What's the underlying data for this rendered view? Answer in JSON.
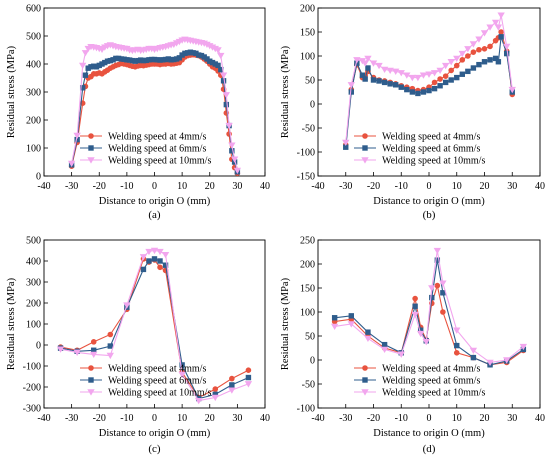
{
  "colors": {
    "s4": "#e8533f",
    "s6": "#2f5d8c",
    "s10": "#f2a6ee"
  },
  "chart_data": [
    {
      "type": "line",
      "panel_label": "(a)",
      "xlabel": "Distance to origin O (mm)",
      "ylabel": "Residual stress (MPa)",
      "xlim": [
        -40,
        40
      ],
      "ylim": [
        0,
        600
      ],
      "xticks": [
        -40,
        -30,
        -20,
        -10,
        0,
        10,
        20,
        30,
        40
      ],
      "yticks": [
        0,
        100,
        200,
        300,
        400,
        500,
        600
      ],
      "legend_position": "bottom-center",
      "series": [
        {
          "name": "Welding speed at 4mm/s",
          "marker": "circle",
          "color": "#e8533f",
          "x": [
            -30,
            -28,
            -26,
            -25,
            -24,
            -23,
            -22,
            -21,
            -20,
            -19,
            -18,
            -17,
            -16,
            -15,
            -14,
            -13,
            -12,
            -11,
            -10,
            -9,
            -8,
            -7,
            -6,
            -5,
            -4,
            -3,
            -2,
            -1,
            0,
            1,
            2,
            3,
            4,
            5,
            6,
            7,
            8,
            9,
            10,
            11,
            12,
            13,
            14,
            15,
            16,
            17,
            18,
            19,
            20,
            21,
            22,
            23,
            24,
            25,
            26,
            27,
            28,
            29,
            30
          ],
          "y": [
            35,
            120,
            260,
            320,
            350,
            355,
            365,
            365,
            368,
            365,
            372,
            378,
            385,
            390,
            395,
            398,
            402,
            400,
            398,
            395,
            392,
            390,
            393,
            395,
            394,
            396,
            398,
            400,
            400,
            400,
            398,
            400,
            400,
            402,
            400,
            401,
            403,
            405,
            415,
            425,
            430,
            432,
            433,
            432,
            430,
            425,
            418,
            410,
            400,
            390,
            385,
            375,
            360,
            310,
            225,
            150,
            60,
            30,
            10
          ]
        },
        {
          "name": "Welding speed at 6mm/s",
          "marker": "square",
          "color": "#2f5d8c",
          "x": [
            -30,
            -28,
            -26,
            -25,
            -24,
            -23,
            -22,
            -21,
            -20,
            -19,
            -18,
            -17,
            -16,
            -15,
            -14,
            -13,
            -12,
            -11,
            -10,
            -9,
            -8,
            -7,
            -6,
            -5,
            -4,
            -3,
            -2,
            -1,
            0,
            1,
            2,
            3,
            4,
            5,
            6,
            7,
            8,
            9,
            10,
            11,
            12,
            13,
            14,
            15,
            16,
            17,
            18,
            19,
            20,
            21,
            22,
            23,
            24,
            25,
            26,
            27,
            28,
            29,
            30
          ],
          "y": [
            40,
            130,
            315,
            360,
            385,
            390,
            392,
            390,
            395,
            400,
            405,
            410,
            412,
            415,
            420,
            420,
            418,
            417,
            415,
            414,
            412,
            410,
            412,
            414,
            412,
            413,
            415,
            416,
            416,
            415,
            414,
            415,
            416,
            418,
            415,
            416,
            418,
            422,
            432,
            438,
            440,
            442,
            440,
            438,
            432,
            430,
            425,
            418,
            410,
            405,
            400,
            395,
            380,
            340,
            255,
            180,
            90,
            50,
            15
          ]
        },
        {
          "name": "Welding speed at 10mm/s",
          "marker": "triangle-down",
          "color": "#f2a6ee",
          "x": [
            -30,
            -28,
            -26,
            -25,
            -24,
            -23,
            -22,
            -21,
            -20,
            -19,
            -18,
            -17,
            -16,
            -15,
            -14,
            -13,
            -12,
            -11,
            -10,
            -9,
            -8,
            -7,
            -6,
            -5,
            -4,
            -3,
            -2,
            -1,
            0,
            1,
            2,
            3,
            4,
            5,
            6,
            7,
            8,
            9,
            10,
            11,
            12,
            13,
            14,
            15,
            16,
            17,
            18,
            19,
            20,
            21,
            22,
            23,
            24,
            25,
            26,
            27,
            28,
            29,
            30
          ],
          "y": [
            45,
            145,
            395,
            440,
            455,
            462,
            460,
            458,
            455,
            452,
            460,
            465,
            468,
            465,
            462,
            460,
            458,
            456,
            455,
            450,
            448,
            450,
            452,
            448,
            450,
            452,
            455,
            455,
            452,
            455,
            458,
            460,
            462,
            465,
            468,
            470,
            475,
            480,
            485,
            488,
            486,
            484,
            482,
            480,
            478,
            476,
            474,
            470,
            465,
            460,
            455,
            450,
            430,
            360,
            290,
            180,
            110,
            60,
            20
          ]
        }
      ]
    },
    {
      "type": "line",
      "panel_label": "(b)",
      "xlabel": "Distance to origin O (mm)",
      "ylabel": "Residual stress (MPa)",
      "xlim": [
        -40,
        40
      ],
      "ylim": [
        -150,
        200
      ],
      "xticks": [
        -40,
        -30,
        -20,
        -10,
        0,
        10,
        20,
        30,
        40
      ],
      "yticks": [
        -150,
        -100,
        -50,
        0,
        50,
        100,
        150,
        200
      ],
      "legend_position": "bottom-center",
      "series": [
        {
          "name": "Welding speed at 4mm/s",
          "marker": "circle",
          "color": "#e8533f",
          "x": [
            -30,
            -28,
            -26,
            -24,
            -23,
            -22,
            -20,
            -18,
            -16,
            -14,
            -12,
            -10,
            -8,
            -6,
            -4,
            -2,
            0,
            2,
            4,
            6,
            8,
            10,
            12,
            14,
            16,
            18,
            20,
            22,
            24,
            25,
            26,
            28,
            30
          ],
          "y": [
            -85,
            30,
            82,
            55,
            60,
            68,
            55,
            50,
            48,
            45,
            42,
            38,
            35,
            32,
            28,
            30,
            35,
            45,
            52,
            58,
            70,
            80,
            92,
            100,
            108,
            113,
            115,
            120,
            132,
            138,
            150,
            110,
            20
          ]
        },
        {
          "name": "Welding speed at 6mm/s",
          "marker": "square",
          "color": "#2f5d8c",
          "x": [
            -30,
            -28,
            -26,
            -24,
            -23,
            -22,
            -20,
            -18,
            -16,
            -14,
            -12,
            -10,
            -8,
            -6,
            -4,
            -2,
            0,
            2,
            4,
            6,
            8,
            10,
            12,
            14,
            16,
            18,
            20,
            22,
            24,
            25,
            26,
            28,
            30
          ],
          "y": [
            -90,
            25,
            85,
            60,
            52,
            75,
            50,
            48,
            45,
            42,
            40,
            35,
            30,
            25,
            22,
            25,
            28,
            32,
            38,
            45,
            50,
            55,
            62,
            68,
            75,
            82,
            88,
            92,
            95,
            88,
            140,
            105,
            25
          ]
        },
        {
          "name": "Welding speed at 10mm/s",
          "marker": "triangle-down",
          "color": "#f2a6ee",
          "x": [
            -30,
            -28,
            -26,
            -24,
            -23,
            -22,
            -20,
            -18,
            -16,
            -14,
            -12,
            -10,
            -8,
            -6,
            -4,
            -2,
            0,
            2,
            4,
            6,
            8,
            10,
            12,
            14,
            16,
            18,
            20,
            22,
            24,
            25,
            26,
            28,
            30
          ],
          "y": [
            -80,
            40,
            92,
            90,
            85,
            95,
            85,
            80,
            72,
            70,
            68,
            65,
            60,
            55,
            55,
            60,
            62,
            65,
            70,
            80,
            88,
            95,
            105,
            115,
            125,
            135,
            148,
            160,
            170,
            160,
            185,
            120,
            30
          ]
        }
      ]
    },
    {
      "type": "line",
      "panel_label": "(c)",
      "xlabel": "Distance to origin O (mm)",
      "ylabel": "Residual stress (MPa)",
      "xlim": [
        -40,
        40
      ],
      "ylim": [
        -300,
        500
      ],
      "xticks": [
        -40,
        -30,
        -20,
        -10,
        0,
        10,
        20,
        30,
        40
      ],
      "yticks": [
        -300,
        -200,
        -100,
        0,
        100,
        200,
        300,
        400,
        500
      ],
      "legend_position": "bottom-center",
      "series": [
        {
          "name": "Welding speed at 4mm/s",
          "marker": "circle",
          "color": "#e8533f",
          "x": [
            -34,
            -28,
            -22,
            -16,
            -10,
            -4,
            -2,
            0,
            2,
            4,
            10,
            16,
            22,
            28,
            34
          ],
          "y": [
            -10,
            -25,
            15,
            50,
            170,
            410,
            395,
            405,
            370,
            355,
            -130,
            -250,
            -210,
            -160,
            -120
          ]
        },
        {
          "name": "Welding speed at 6mm/s",
          "marker": "square",
          "color": "#2f5d8c",
          "x": [
            -34,
            -28,
            -22,
            -16,
            -10,
            -4,
            -2,
            0,
            2,
            4,
            10,
            16,
            22,
            28,
            34
          ],
          "y": [
            -15,
            -30,
            -25,
            -5,
            180,
            360,
            400,
            410,
            400,
            380,
            -95,
            -255,
            -235,
            -190,
            -155
          ]
        },
        {
          "name": "Welding speed at 10mm/s",
          "marker": "triangle-down",
          "color": "#f2a6ee",
          "x": [
            -34,
            -28,
            -22,
            -16,
            -10,
            -4,
            -2,
            0,
            2,
            4,
            10,
            16,
            22,
            28,
            34
          ],
          "y": [
            -20,
            -35,
            -45,
            -50,
            190,
            420,
            445,
            450,
            445,
            430,
            -140,
            -265,
            -250,
            -215,
            -185
          ]
        }
      ]
    },
    {
      "type": "line",
      "panel_label": "(d)",
      "xlabel": "Distance to origin O (mm)",
      "ylabel": "Residual stress (MPa)",
      "xlim": [
        -40,
        40
      ],
      "ylim": [
        -100,
        250
      ],
      "xticks": [
        -40,
        -30,
        -20,
        -10,
        0,
        10,
        20,
        30,
        40
      ],
      "yticks": [
        -100,
        -50,
        0,
        50,
        100,
        150,
        200,
        250
      ],
      "legend_position": "bottom-center",
      "series": [
        {
          "name": "Welding speed at 4mm/s",
          "marker": "circle",
          "color": "#e8533f",
          "x": [
            -34,
            -28,
            -22,
            -16,
            -10,
            -5,
            -3,
            -1,
            1,
            3,
            5,
            10,
            16,
            22,
            28,
            34
          ],
          "y": [
            80,
            85,
            50,
            25,
            15,
            128,
            68,
            42,
            118,
            155,
            100,
            15,
            5,
            -10,
            -5,
            20
          ]
        },
        {
          "name": "Welding speed at 6mm/s",
          "marker": "square",
          "color": "#2f5d8c",
          "x": [
            -34,
            -28,
            -22,
            -16,
            -10,
            -5,
            -3,
            -1,
            1,
            3,
            5,
            10,
            16,
            22,
            28,
            34
          ],
          "y": [
            88,
            92,
            58,
            32,
            15,
            112,
            62,
            40,
            130,
            208,
            140,
            30,
            5,
            -10,
            -2,
            22
          ]
        },
        {
          "name": "Welding speed at 10mm/s",
          "marker": "triangle-down",
          "color": "#f2a6ee",
          "x": [
            -34,
            -28,
            -22,
            -16,
            -10,
            -5,
            -3,
            -1,
            1,
            3,
            5,
            10,
            16,
            22,
            28,
            34
          ],
          "y": [
            70,
            75,
            45,
            22,
            12,
            95,
            55,
            38,
            150,
            228,
            160,
            62,
            20,
            -5,
            0,
            28
          ]
        }
      ]
    }
  ]
}
